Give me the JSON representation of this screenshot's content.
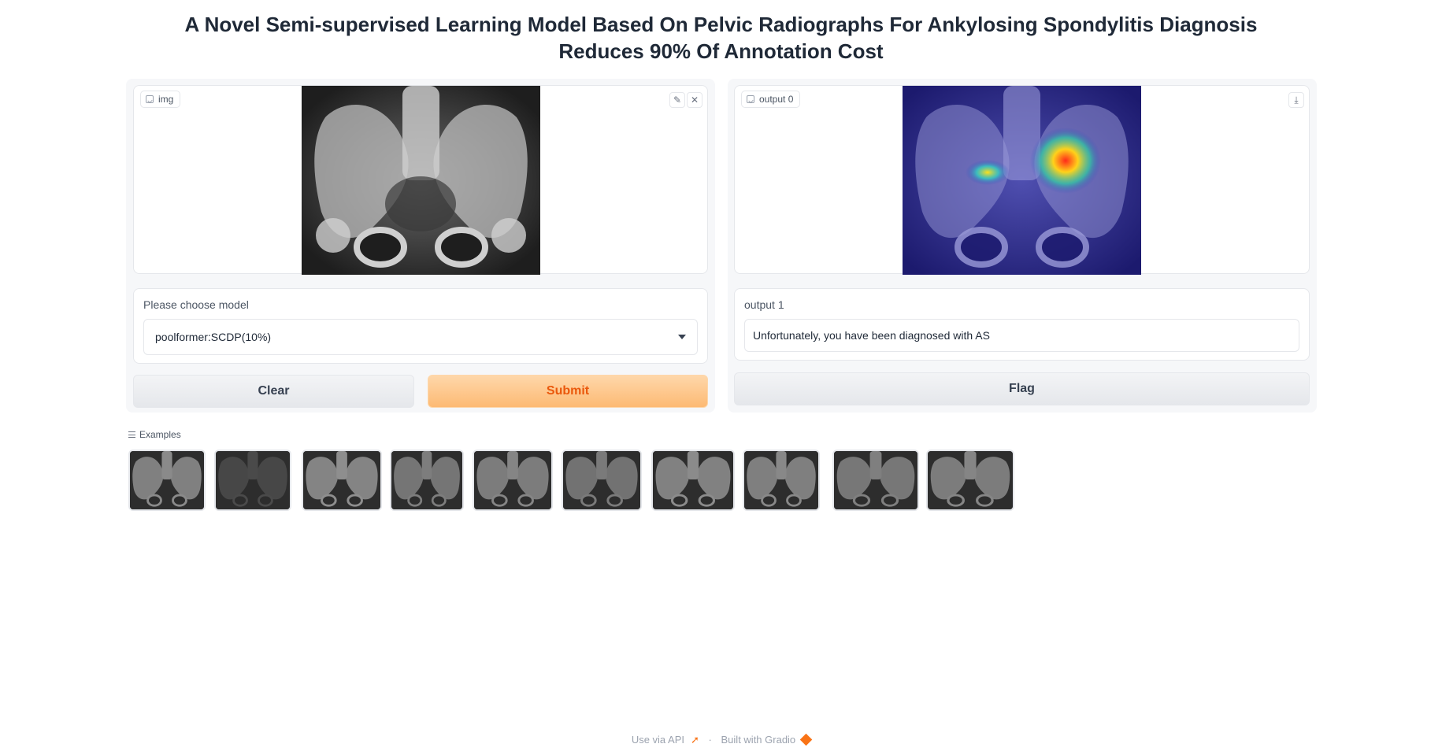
{
  "page": {
    "title": "A Novel Semi-supervised Learning Model Based On Pelvic Radiographs For Ankylosing Spondylitis Diagnosis Reduces 90% Of Annotation Cost"
  },
  "input_panel": {
    "image_label": "img",
    "model_label": "Please choose model",
    "model_value": "poolformer:SCDP(10%)",
    "clear_label": "Clear",
    "submit_label": "Submit"
  },
  "output_panel": {
    "image_label": "output 0",
    "text_label": "output 1",
    "text_value": "Unfortunately, you have been diagnosed with AS",
    "flag_label": "Flag"
  },
  "examples": {
    "label": "Examples",
    "items": [
      "example-1",
      "example-2",
      "example-3",
      "example-4",
      "example-5",
      "example-6",
      "example-7",
      "example-8",
      "example-9",
      "example-10"
    ]
  },
  "footer": {
    "api_label": "Use via API",
    "separator": "·",
    "built_label": "Built with Gradio"
  },
  "colors": {
    "accent": "#f97316",
    "primary_btn_text": "#ea580c",
    "panel_bg": "#f6f7f9"
  },
  "icons": [
    "image-icon",
    "edit-icon",
    "close-icon",
    "download-icon",
    "dropdown-caret-icon",
    "list-icon",
    "rocket-icon",
    "gradio-logo-icon"
  ]
}
